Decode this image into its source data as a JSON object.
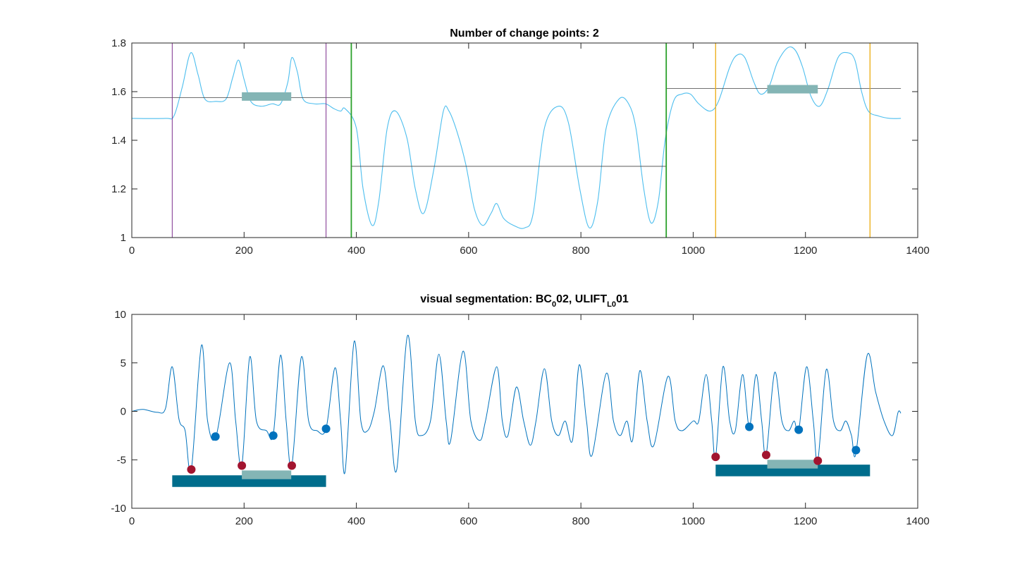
{
  "colors": {
    "signal": "#4DBEEE",
    "raw_signal": "#0072BD",
    "mean_line": "#404040",
    "changepoint": "#2AA02A",
    "segment_purple": "#7E2F8E",
    "segment_orange": "#EDB120",
    "bar_light": "#84B5B5",
    "bar_dark": "#006D8C",
    "dot_red": "#A2142F",
    "dot_blue": "#0072BD",
    "axes": "#262626"
  },
  "chart_data": [
    {
      "type": "line",
      "title": "Number of change points: 2",
      "xlim": [
        0,
        1400
      ],
      "ylim": [
        1,
        1.8
      ],
      "xticks": [
        "0",
        "200",
        "400",
        "600",
        "800",
        "1000",
        "1200",
        "1400"
      ],
      "yticks": [
        "1",
        "1.2",
        "1.4",
        "1.6",
        "1.8"
      ],
      "signal_keypoints": [
        [
          0,
          1.49
        ],
        [
          60,
          1.49
        ],
        [
          75,
          1.5
        ],
        [
          90,
          1.62
        ],
        [
          105,
          1.76
        ],
        [
          118,
          1.67
        ],
        [
          130,
          1.57
        ],
        [
          150,
          1.56
        ],
        [
          168,
          1.57
        ],
        [
          180,
          1.66
        ],
        [
          190,
          1.73
        ],
        [
          200,
          1.65
        ],
        [
          212,
          1.56
        ],
        [
          230,
          1.54
        ],
        [
          250,
          1.55
        ],
        [
          265,
          1.55
        ],
        [
          278,
          1.64
        ],
        [
          285,
          1.74
        ],
        [
          295,
          1.68
        ],
        [
          305,
          1.57
        ],
        [
          325,
          1.55
        ],
        [
          345,
          1.55
        ],
        [
          360,
          1.53
        ],
        [
          372,
          1.52
        ],
        [
          380,
          1.53
        ],
        [
          400,
          1.45
        ],
        [
          412,
          1.2
        ],
        [
          428,
          1.05
        ],
        [
          440,
          1.15
        ],
        [
          455,
          1.45
        ],
        [
          470,
          1.52
        ],
        [
          490,
          1.41
        ],
        [
          505,
          1.2
        ],
        [
          520,
          1.1
        ],
        [
          538,
          1.28
        ],
        [
          555,
          1.52
        ],
        [
          565,
          1.52
        ],
        [
          580,
          1.43
        ],
        [
          595,
          1.3
        ],
        [
          610,
          1.12
        ],
        [
          625,
          1.05
        ],
        [
          640,
          1.1
        ],
        [
          650,
          1.14
        ],
        [
          662,
          1.08
        ],
        [
          680,
          1.05
        ],
        [
          700,
          1.04
        ],
        [
          715,
          1.1
        ],
        [
          735,
          1.45
        ],
        [
          760,
          1.54
        ],
        [
          778,
          1.47
        ],
        [
          798,
          1.2
        ],
        [
          815,
          1.04
        ],
        [
          830,
          1.15
        ],
        [
          845,
          1.45
        ],
        [
          868,
          1.57
        ],
        [
          885,
          1.55
        ],
        [
          898,
          1.45
        ],
        [
          912,
          1.2
        ],
        [
          925,
          1.06
        ],
        [
          938,
          1.15
        ],
        [
          950,
          1.4
        ],
        [
          965,
          1.56
        ],
        [
          980,
          1.59
        ],
        [
          995,
          1.59
        ],
        [
          1010,
          1.55
        ],
        [
          1030,
          1.52
        ],
        [
          1045,
          1.56
        ],
        [
          1065,
          1.7
        ],
        [
          1078,
          1.75
        ],
        [
          1092,
          1.74
        ],
        [
          1108,
          1.64
        ],
        [
          1120,
          1.59
        ],
        [
          1135,
          1.62
        ],
        [
          1150,
          1.72
        ],
        [
          1168,
          1.78
        ],
        [
          1182,
          1.77
        ],
        [
          1195,
          1.7
        ],
        [
          1210,
          1.58
        ],
        [
          1225,
          1.54
        ],
        [
          1240,
          1.61
        ],
        [
          1258,
          1.74
        ],
        [
          1275,
          1.76
        ],
        [
          1288,
          1.73
        ],
        [
          1300,
          1.6
        ],
        [
          1312,
          1.52
        ],
        [
          1330,
          1.5
        ],
        [
          1350,
          1.49
        ],
        [
          1370,
          1.49
        ]
      ],
      "segment_means": [
        {
          "x": [
            0,
            390
          ],
          "y": 1.575
        },
        {
          "x": [
            390,
            952
          ],
          "y": 1.293
        },
        {
          "x": [
            952,
            1370
          ],
          "y": 1.613
        }
      ],
      "change_points": [
        391,
        952
      ],
      "segment_bounds_purple": [
        72,
        346
      ],
      "segment_bounds_orange": [
        1040,
        1315
      ],
      "bars": [
        {
          "x0": 196,
          "x1": 284,
          "y": 1.58
        },
        {
          "x0": 1132,
          "x1": 1222,
          "y": 1.61
        }
      ]
    },
    {
      "type": "line",
      "title_parts": {
        "p1": "visual segmentation: BC",
        "s1": "0",
        "p2": "02, ULIFT",
        "s2": "L0",
        "p3": "01"
      },
      "xlim": [
        0,
        1400
      ],
      "ylim": [
        -10,
        10
      ],
      "xticks": [
        "0",
        "200",
        "400",
        "600",
        "800",
        "1000",
        "1200",
        "1400"
      ],
      "yticks": [
        "-10",
        "-5",
        "0",
        "5",
        "10"
      ],
      "signal_keypoints": [
        [
          0,
          0
        ],
        [
          20,
          0.2
        ],
        [
          45,
          -0.1
        ],
        [
          60,
          0.3
        ],
        [
          72,
          4.6
        ],
        [
          84,
          -0.8
        ],
        [
          95,
          -2
        ],
        [
          106,
          -6
        ],
        [
          124,
          6.8
        ],
        [
          135,
          -1
        ],
        [
          150,
          -2.6
        ],
        [
          174,
          5
        ],
        [
          185,
          -1
        ],
        [
          196,
          -5.6
        ],
        [
          210,
          5.6
        ],
        [
          222,
          -1
        ],
        [
          240,
          -2
        ],
        [
          252,
          -2.4
        ],
        [
          265,
          5.8
        ],
        [
          275,
          -1
        ],
        [
          285,
          -5.6
        ],
        [
          302,
          5.6
        ],
        [
          315,
          -1
        ],
        [
          330,
          -2
        ],
        [
          346,
          -1.8
        ],
        [
          362,
          4.5
        ],
        [
          372,
          -1
        ],
        [
          380,
          -6.2
        ],
        [
          396,
          7.2
        ],
        [
          408,
          -1
        ],
        [
          420,
          -2
        ],
        [
          432,
          0
        ],
        [
          448,
          4.7
        ],
        [
          460,
          -1
        ],
        [
          472,
          -6
        ],
        [
          491,
          7.8
        ],
        [
          505,
          -1
        ],
        [
          515,
          -2.5
        ],
        [
          532,
          -1
        ],
        [
          547,
          5.9
        ],
        [
          560,
          -1
        ],
        [
          568,
          -3
        ],
        [
          590,
          6.2
        ],
        [
          604,
          -1
        ],
        [
          620,
          -3
        ],
        [
          630,
          -1
        ],
        [
          650,
          4.6
        ],
        [
          660,
          -1
        ],
        [
          670,
          -2.5
        ],
        [
          685,
          2.5
        ],
        [
          698,
          -1
        ],
        [
          710,
          -3.5
        ],
        [
          720,
          -1
        ],
        [
          735,
          4.4
        ],
        [
          748,
          -1
        ],
        [
          760,
          -2.5
        ],
        [
          772,
          -1
        ],
        [
          785,
          -3
        ],
        [
          797,
          4.8
        ],
        [
          810,
          -1
        ],
        [
          820,
          -4.5
        ],
        [
          845,
          3.9
        ],
        [
          858,
          -1
        ],
        [
          870,
          -2.5
        ],
        [
          882,
          -1
        ],
        [
          892,
          -3
        ],
        [
          905,
          4.2
        ],
        [
          918,
          -1
        ],
        [
          930,
          -3.5
        ],
        [
          955,
          3.6
        ],
        [
          968,
          -1
        ],
        [
          980,
          -2
        ],
        [
          1000,
          -1
        ],
        [
          1010,
          -1
        ],
        [
          1023,
          3.8
        ],
        [
          1033,
          -1
        ],
        [
          1040,
          -4.7
        ],
        [
          1053,
          4.6
        ],
        [
          1065,
          -1
        ],
        [
          1075,
          -2
        ],
        [
          1088,
          3.8
        ],
        [
          1100,
          -1.6
        ],
        [
          1112,
          3.8
        ],
        [
          1122,
          -1
        ],
        [
          1130,
          -4.5
        ],
        [
          1145,
          4
        ],
        [
          1158,
          -1
        ],
        [
          1170,
          -2
        ],
        [
          1180,
          -1
        ],
        [
          1188,
          -2
        ],
        [
          1202,
          4.6
        ],
        [
          1214,
          -1
        ],
        [
          1222,
          -5.1
        ],
        [
          1237,
          4.3
        ],
        [
          1250,
          -1
        ],
        [
          1262,
          -2
        ],
        [
          1272,
          -1
        ],
        [
          1282,
          -2.5
        ],
        [
          1290,
          -4.3
        ],
        [
          1310,
          5.8
        ],
        [
          1325,
          2
        ],
        [
          1340,
          -1
        ],
        [
          1355,
          -2.5
        ],
        [
          1365,
          -0.1
        ],
        [
          1370,
          -0.2
        ]
      ],
      "red_points": [
        [
          106,
          -6
        ],
        [
          196,
          -5.6
        ],
        [
          285,
          -5.6
        ],
        [
          1040,
          -4.7
        ],
        [
          1130,
          -4.5
        ],
        [
          1222,
          -5.1
        ]
      ],
      "blue_points": [
        [
          149,
          -2.6
        ],
        [
          252,
          -2.5
        ],
        [
          346,
          -1.8
        ],
        [
          1100,
          -1.6
        ],
        [
          1188,
          -1.9
        ],
        [
          1290,
          -4
        ]
      ],
      "dark_bars": [
        {
          "x0": 72,
          "x1": 346,
          "y_top": -6.6,
          "y_bottom": -7.8
        },
        {
          "x0": 1040,
          "x1": 1315,
          "y_top": -5.5,
          "y_bottom": -6.7
        }
      ],
      "light_bars": [
        {
          "x0": 196,
          "x1": 284,
          "y_top": -6.1,
          "y_bottom": -7
        },
        {
          "x0": 1132,
          "x1": 1222,
          "y_top": -5,
          "y_bottom": -5.9
        }
      ]
    }
  ]
}
